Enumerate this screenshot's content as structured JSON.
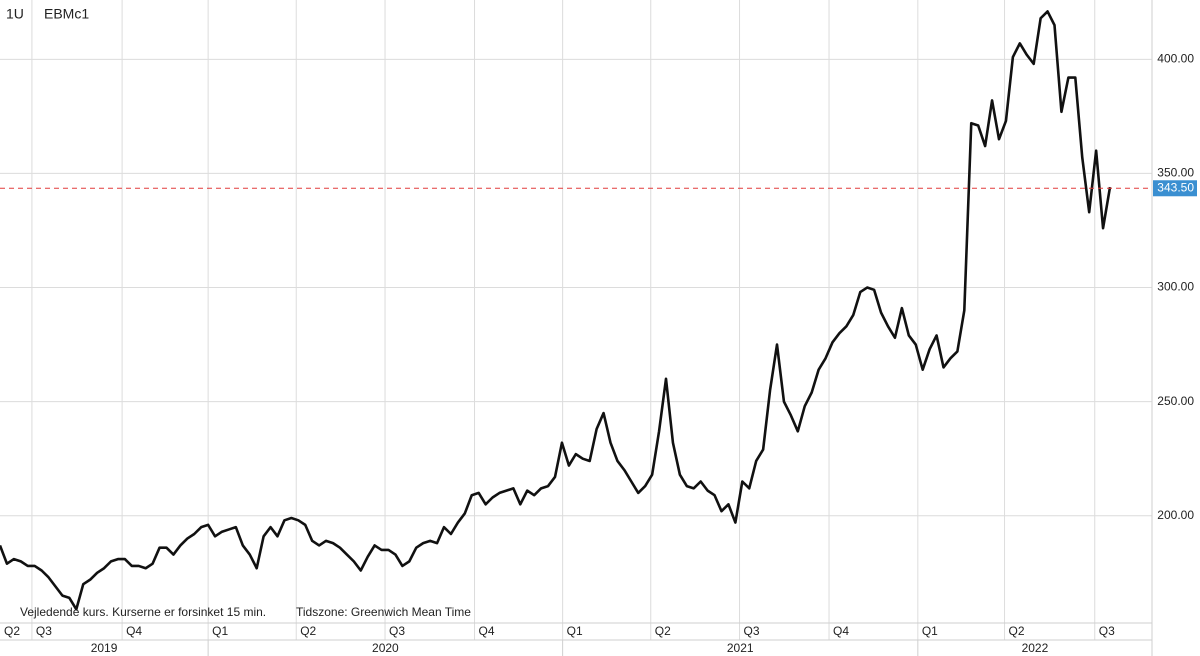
{
  "chart_data": {
    "type": "line",
    "interval": "1U",
    "symbol": "EBMc1",
    "note": "Vejledende kurs. Kurserne er forsinket 15 min.",
    "timezone": "Tidszone: Greenwich Mean Time",
    "categories": [
      null,
      null,
      null,
      null,
      null,
      null,
      null,
      null,
      null,
      null,
      null,
      null,
      null,
      null,
      null,
      null,
      null,
      null,
      null,
      null,
      null,
      null,
      null,
      null,
      null,
      null,
      null,
      null,
      null,
      null,
      null,
      null,
      null,
      null,
      null,
      null,
      null,
      null,
      null,
      null,
      null,
      null,
      null,
      null,
      null,
      null,
      null,
      null,
      null,
      null,
      null,
      null,
      null,
      null,
      null,
      null,
      null,
      null,
      null,
      null,
      null,
      null,
      null,
      null,
      null,
      null,
      null,
      null,
      null,
      null,
      null,
      null,
      null,
      null,
      null,
      null,
      null,
      null,
      null,
      null,
      null,
      null,
      null,
      null,
      null,
      null,
      null,
      null,
      null,
      null,
      null,
      null,
      null,
      null,
      null,
      null,
      null,
      null,
      null,
      null,
      null,
      null,
      null,
      null,
      null,
      null,
      null,
      null,
      null,
      null,
      null,
      null,
      null,
      null,
      null,
      null,
      null,
      null,
      null,
      null,
      null,
      null,
      null,
      null,
      null,
      null,
      null,
      null,
      null,
      null,
      null,
      null,
      null,
      null,
      null,
      null,
      null,
      null,
      null,
      null,
      null,
      null,
      null,
      null,
      null,
      null,
      null,
      null,
      null,
      null,
      null,
      null,
      null,
      null,
      null,
      null,
      null,
      null,
      null,
      null,
      null
    ],
    "series": [
      {
        "name": "EBMc1",
        "color": "#111111",
        "values": [
          187,
          179,
          181,
          180,
          178,
          178,
          176,
          173,
          169,
          165,
          164,
          159,
          170,
          172,
          175,
          177,
          180,
          181,
          181,
          178,
          178,
          177,
          179,
          186,
          186,
          183,
          187,
          190,
          192,
          195,
          196,
          191,
          193,
          194,
          195,
          187,
          183,
          177,
          191,
          195,
          191,
          198,
          199,
          198,
          196,
          189,
          187,
          189,
          188,
          186,
          183,
          180,
          176,
          182,
          187,
          185,
          185,
          183,
          178,
          180,
          186,
          188,
          189,
          188,
          195,
          192,
          197,
          201,
          209,
          210,
          205,
          208,
          210,
          211,
          212,
          205,
          211,
          209,
          212,
          213,
          217,
          232,
          222,
          227,
          225,
          224,
          238,
          245,
          232,
          224,
          220,
          215,
          210,
          213,
          218,
          237,
          260,
          232,
          218,
          213,
          212,
          215,
          211,
          209,
          202,
          205,
          197,
          215,
          212,
          224,
          229,
          255,
          275,
          250,
          244,
          237,
          248,
          254,
          264,
          269,
          276,
          280,
          283,
          288,
          298,
          300,
          299,
          289,
          283,
          278,
          291,
          279,
          275,
          264,
          273,
          279,
          265,
          269,
          272,
          290,
          372,
          371,
          362,
          382,
          365,
          373,
          401,
          407,
          402,
          398,
          418,
          421,
          415,
          377,
          392,
          392,
          357,
          333,
          360,
          326,
          344
        ]
      }
    ],
    "current": {
      "value": 343.5,
      "label": "343.50",
      "color": "#e23b3b",
      "box_color": "#3a8fd1"
    },
    "ylim": [
      153,
      426
    ],
    "yticks": [
      {
        "value": 200,
        "label": "200.00"
      },
      {
        "value": 250,
        "label": "250.00"
      },
      {
        "value": 300,
        "label": "300.00"
      },
      {
        "value": 350,
        "label": "350.00"
      },
      {
        "value": 400,
        "label": "400.00"
      }
    ],
    "xticks": [
      {
        "value": -8.2,
        "label": "Q2"
      },
      {
        "value": 4.6,
        "label": "Q3"
      },
      {
        "value": 17.6,
        "label": "Q4"
      },
      {
        "value": 30,
        "label": "Q1"
      },
      {
        "value": 42.7,
        "label": "Q2"
      },
      {
        "value": 55.5,
        "label": "Q3"
      },
      {
        "value": 68.4,
        "label": "Q4"
      },
      {
        "value": 81.1,
        "label": "Q1"
      },
      {
        "value": 93.8,
        "label": "Q2"
      },
      {
        "value": 106.6,
        "label": "Q3"
      },
      {
        "value": 119.5,
        "label": "Q4"
      },
      {
        "value": 132.3,
        "label": "Q1"
      },
      {
        "value": 144.8,
        "label": "Q2"
      },
      {
        "value": 157.8,
        "label": "Q3"
      }
    ],
    "years": [
      {
        "value": -21,
        "label": "2019"
      },
      {
        "value": 30,
        "label": "2020"
      },
      {
        "value": 81.1,
        "label": "2021"
      },
      {
        "value": 132.3,
        "label": "2022"
      }
    ],
    "grid": true
  }
}
